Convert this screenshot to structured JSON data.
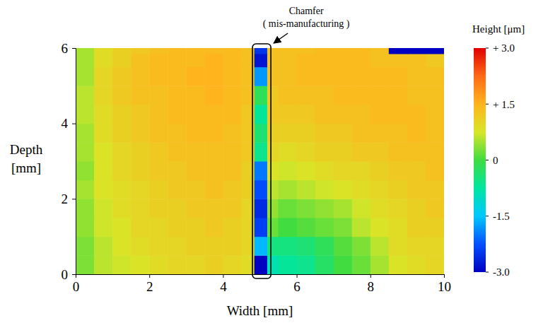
{
  "chart_data": {
    "type": "heatmap",
    "xlabel": "Width [mm]",
    "ylabel": [
      "Depth",
      "[mm]"
    ],
    "xlim": [
      0,
      10
    ],
    "xticks": [
      0,
      2,
      4,
      6,
      8,
      10
    ],
    "ylim": [
      0,
      6
    ],
    "yticks": [
      0,
      2,
      4,
      6
    ],
    "x_edges": [
      0,
      0.5,
      1,
      1.5,
      2,
      2.5,
      3,
      3.5,
      4,
      4.5,
      4.85,
      5.2,
      5.5,
      6,
      6.5,
      7,
      7.5,
      8,
      8.5,
      9,
      9.5,
      10
    ],
    "y_edges": [
      0,
      0.5,
      1,
      1.5,
      2,
      2.5,
      3,
      3.5,
      4,
      4.5,
      5,
      5.5,
      5.85,
      6
    ],
    "cells": [
      [
        0.3,
        0.6,
        0.7,
        0.8,
        0.9,
        1.0,
        1.0,
        1.1,
        1.0,
        0.9,
        -3.0,
        -0.9,
        -0.7,
        -0.6,
        -0.3,
        0.0,
        0.2,
        0.5,
        0.8,
        0.9,
        1.0
      ],
      [
        0.3,
        0.6,
        0.8,
        0.9,
        1.0,
        1.0,
        1.1,
        1.1,
        1.1,
        1.0,
        -1.6,
        -0.5,
        -0.5,
        -0.4,
        -0.2,
        0.1,
        0.3,
        0.6,
        0.9,
        1.0,
        1.0
      ],
      [
        0.4,
        0.7,
        0.8,
        1.0,
        1.0,
        1.1,
        1.1,
        1.2,
        1.1,
        1.0,
        -2.4,
        0.2,
        0.0,
        0.1,
        0.2,
        0.3,
        0.6,
        0.8,
        0.9,
        1.1,
        1.1
      ],
      [
        0.4,
        0.7,
        0.9,
        1.0,
        1.1,
        1.1,
        1.2,
        1.2,
        1.2,
        1.0,
        -2.6,
        0.4,
        0.2,
        0.3,
        0.4,
        0.5,
        0.7,
        0.9,
        1.0,
        1.1,
        1.2
      ],
      [
        0.5,
        0.8,
        0.9,
        1.0,
        1.1,
        1.2,
        1.2,
        1.3,
        1.2,
        1.1,
        -2.3,
        0.6,
        0.5,
        0.6,
        0.7,
        0.8,
        0.9,
        1.0,
        1.1,
        1.2,
        1.2
      ],
      [
        0.4,
        0.8,
        1.0,
        1.1,
        1.2,
        1.2,
        1.3,
        1.3,
        1.3,
        1.1,
        -2.0,
        0.8,
        0.7,
        0.8,
        0.9,
        1.0,
        1.0,
        1.1,
        1.2,
        1.2,
        1.3
      ],
      [
        0.5,
        0.8,
        1.0,
        1.1,
        1.2,
        1.3,
        1.3,
        1.3,
        1.3,
        1.2,
        -0.6,
        1.0,
        0.9,
        1.0,
        1.1,
        1.1,
        1.2,
        1.2,
        1.3,
        1.3,
        1.3
      ],
      [
        0.5,
        0.9,
        1.1,
        1.2,
        1.3,
        1.3,
        1.4,
        1.4,
        1.3,
        1.2,
        -0.4,
        1.1,
        1.1,
        1.1,
        1.2,
        1.2,
        1.3,
        1.3,
        1.3,
        1.4,
        1.3
      ],
      [
        0.6,
        0.9,
        1.1,
        1.2,
        1.3,
        1.4,
        1.4,
        1.4,
        1.4,
        1.2,
        -0.7,
        1.2,
        1.2,
        1.2,
        1.3,
        1.3,
        1.3,
        1.4,
        1.4,
        1.4,
        1.3
      ],
      [
        0.6,
        1.0,
        1.2,
        1.3,
        1.3,
        1.4,
        1.4,
        1.5,
        1.4,
        1.3,
        -0.2,
        1.2,
        1.3,
        1.3,
        1.3,
        1.4,
        1.4,
        1.4,
        1.4,
        1.3,
        1.3
      ],
      [
        0.5,
        1.0,
        1.2,
        1.3,
        1.4,
        1.4,
        1.5,
        1.5,
        1.4,
        1.3,
        -1.8,
        1.3,
        1.3,
        1.4,
        1.4,
        1.4,
        1.4,
        1.4,
        1.4,
        1.3,
        1.3
      ],
      [
        0.5,
        0.9,
        1.1,
        1.3,
        1.4,
        1.4,
        1.4,
        1.5,
        1.4,
        1.3,
        -2.8,
        1.3,
        1.3,
        1.4,
        1.4,
        1.4,
        1.4,
        1.3,
        1.3,
        1.3,
        1.2
      ],
      [
        0.5,
        0.9,
        1.1,
        1.2,
        1.3,
        1.4,
        1.4,
        1.4,
        1.4,
        1.3,
        -2.5,
        1.3,
        1.3,
        1.3,
        1.4,
        1.4,
        1.4,
        1.3,
        -3.0,
        -3.0,
        -3.0
      ]
    ],
    "colorbar": {
      "title": "Height [μm]",
      "range": [
        -3,
        3
      ],
      "ticks": [
        {
          "value": 3,
          "label": "+ 3.0"
        },
        {
          "value": 1.5,
          "label": "+ 1.5"
        },
        0,
        {
          "value": -1.5,
          "label": "-1.5"
        },
        {
          "value": -3,
          "label": "-3.0"
        }
      ]
    },
    "annotations": [
      {
        "text": [
          "Chamfer",
          "( mis-manufacturing )"
        ],
        "x": [
          4.8,
          5.3
        ]
      }
    ]
  }
}
